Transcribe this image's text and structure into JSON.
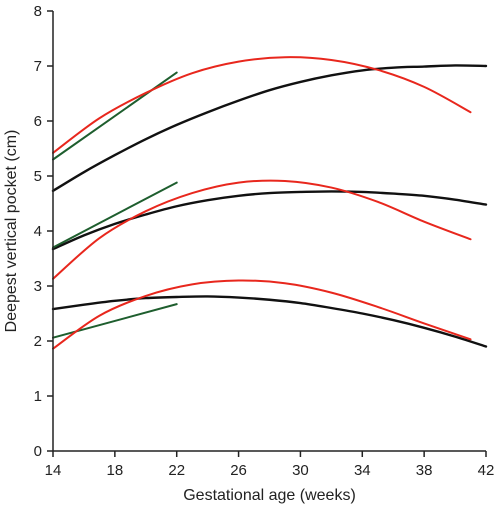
{
  "chart_data": {
    "type": "line",
    "title": "",
    "xlabel": "Gestational age (weeks)",
    "ylabel": "Deepest vertical pocket (cm)",
    "xlim": [
      14,
      42
    ],
    "ylim": [
      0,
      8
    ],
    "x_ticks": [
      "14",
      "18",
      "22",
      "26",
      "30",
      "34",
      "38",
      "42"
    ],
    "y_ticks": [
      "0",
      "1",
      "2",
      "3",
      "4",
      "5",
      "6",
      "7",
      "8"
    ],
    "grid": false,
    "legend": "none",
    "colors": {
      "black": "#111111",
      "red": "#e8271d",
      "green": "#1e5e2e",
      "axis": "#222222"
    },
    "series": [
      {
        "color": "black",
        "x": [
          14,
          16,
          18,
          20,
          22,
          24,
          26,
          28,
          30,
          32,
          34,
          36,
          38,
          40,
          42
        ],
        "y": [
          4.73,
          5.07,
          5.38,
          5.67,
          5.93,
          6.16,
          6.37,
          6.56,
          6.71,
          6.83,
          6.92,
          6.97,
          6.99,
          7.01,
          7.0
        ]
      },
      {
        "color": "black",
        "x": [
          14,
          16,
          18,
          20,
          22,
          24,
          26,
          28,
          30,
          32,
          34,
          36,
          38,
          40,
          42
        ],
        "y": [
          3.67,
          3.92,
          4.13,
          4.3,
          4.45,
          4.56,
          4.64,
          4.69,
          4.71,
          4.72,
          4.71,
          4.68,
          4.64,
          4.57,
          4.48
        ]
      },
      {
        "color": "black",
        "x": [
          14,
          16,
          18,
          20,
          22,
          24,
          26,
          28,
          30,
          32,
          34,
          36,
          38,
          40,
          42
        ],
        "y": [
          2.58,
          2.66,
          2.73,
          2.78,
          2.8,
          2.81,
          2.79,
          2.75,
          2.69,
          2.6,
          2.5,
          2.38,
          2.24,
          2.08,
          1.9
        ]
      },
      {
        "color": "red",
        "x": [
          14,
          17,
          20,
          23,
          26,
          29,
          32,
          35,
          38,
          41
        ],
        "y": [
          5.42,
          6.05,
          6.51,
          6.87,
          7.08,
          7.16,
          7.11,
          6.93,
          6.62,
          6.16
        ]
      },
      {
        "color": "red",
        "x": [
          14,
          17,
          20,
          23,
          26,
          29,
          32,
          35,
          38,
          41
        ],
        "y": [
          3.13,
          3.87,
          4.36,
          4.69,
          4.88,
          4.91,
          4.79,
          4.53,
          4.17,
          3.85
        ]
      },
      {
        "color": "red",
        "x": [
          14,
          17,
          20,
          23,
          26,
          29,
          32,
          35,
          38,
          41
        ],
        "y": [
          1.86,
          2.46,
          2.82,
          3.03,
          3.1,
          3.05,
          2.88,
          2.62,
          2.32,
          2.03
        ]
      },
      {
        "color": "green",
        "x": [
          14,
          22
        ],
        "y": [
          5.3,
          6.88
        ]
      },
      {
        "color": "green",
        "x": [
          14,
          22
        ],
        "y": [
          3.7,
          4.88
        ]
      },
      {
        "color": "green",
        "x": [
          14,
          22
        ],
        "y": [
          2.06,
          2.67
        ]
      }
    ]
  }
}
